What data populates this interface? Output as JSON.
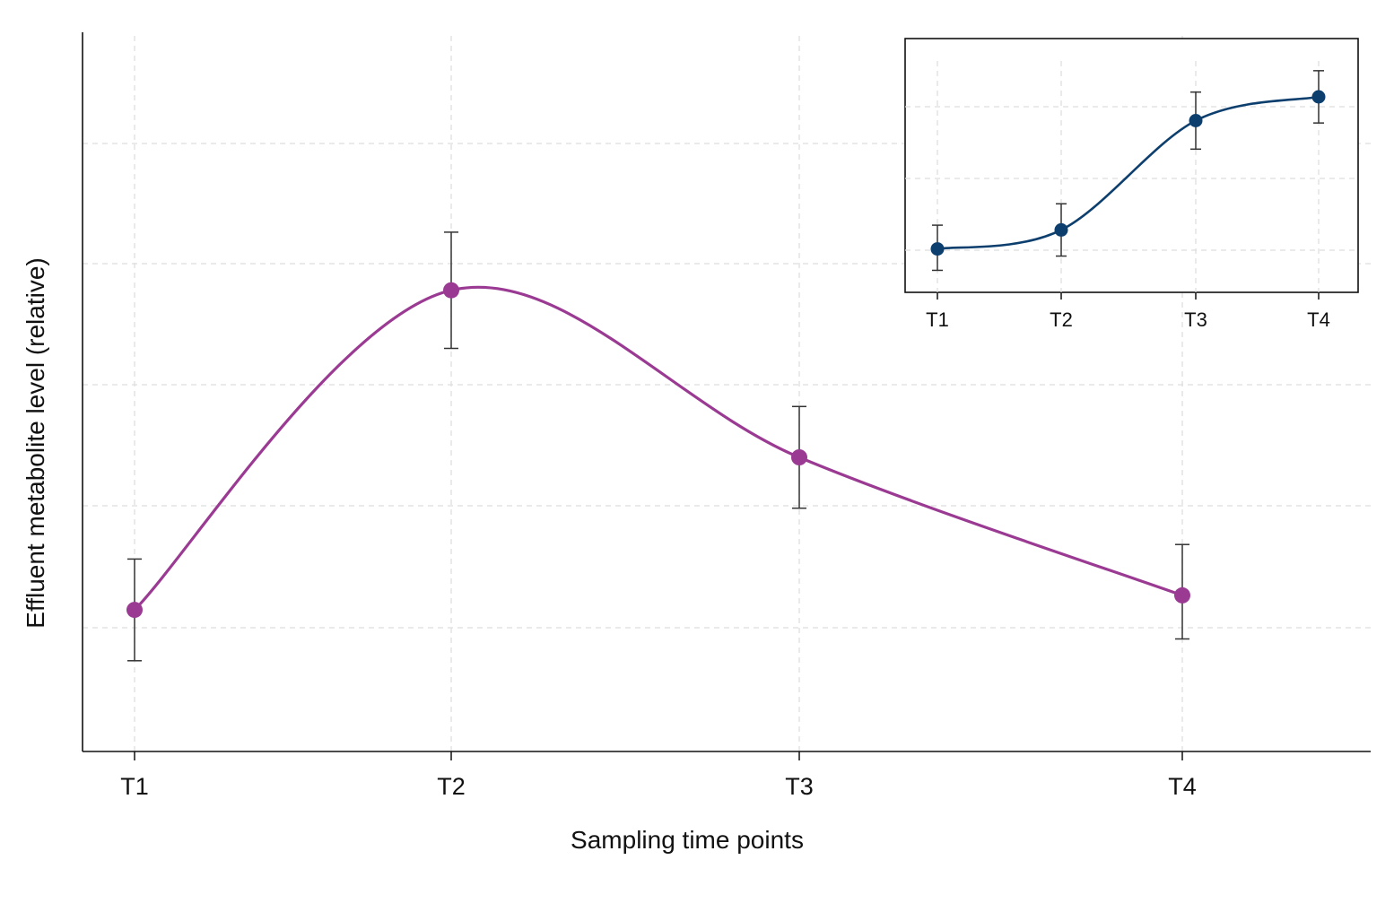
{
  "chart_data": [
    {
      "type": "line",
      "title": "",
      "xlabel": "Sampling time points",
      "ylabel": "Effluent metabolite level (relative)",
      "categories": [
        "T1",
        "T2",
        "T3",
        "T4"
      ],
      "ylim": [
        0,
        1
      ],
      "y_tick_labels_shown": false,
      "grid": true,
      "smooth": true,
      "series": [
        {
          "color": "#9b3a93",
          "values": [
            0.19,
            0.63,
            0.4,
            0.21
          ],
          "error_low": [
            0.12,
            0.55,
            0.33,
            0.15
          ],
          "error_high": [
            0.26,
            0.71,
            0.47,
            0.28
          ]
        }
      ]
    },
    {
      "type": "line",
      "role": "inset",
      "title": "",
      "xlabel": "",
      "ylabel": "",
      "categories": [
        "T1",
        "T2",
        "T3",
        "T4"
      ],
      "ylim": [
        0,
        1
      ],
      "y_tick_labels_shown": false,
      "grid": true,
      "smooth": true,
      "series": [
        {
          "color": "#0d3f6e",
          "values": [
            0.16,
            0.24,
            0.7,
            0.8
          ],
          "error_low": [
            0.07,
            0.13,
            0.58,
            0.69
          ],
          "error_high": [
            0.26,
            0.35,
            0.82,
            0.91
          ]
        }
      ]
    }
  ]
}
